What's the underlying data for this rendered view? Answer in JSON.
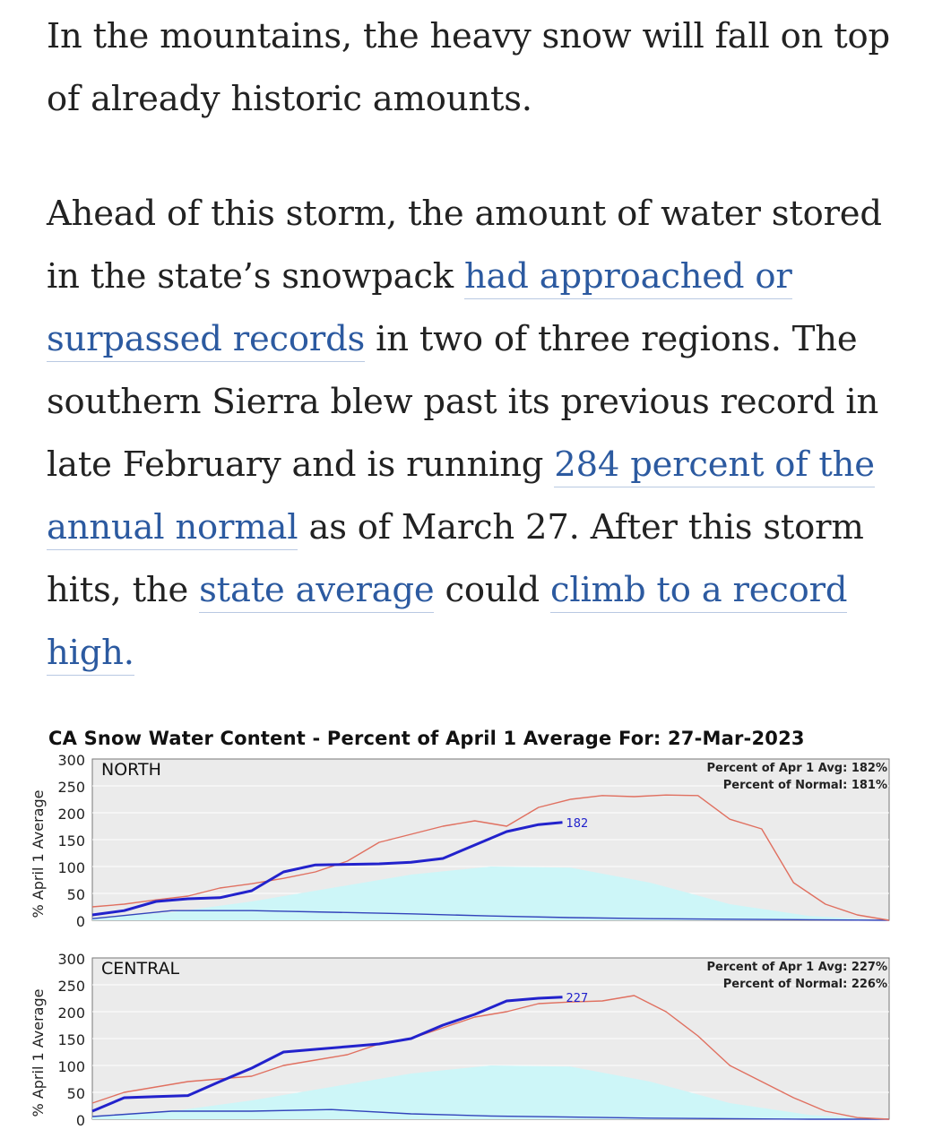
{
  "article": {
    "p1": "In the mountains, the heavy snow will fall on top of already historic amounts.",
    "p2_a": "Ahead of this storm, the amount of water stored in the state’s snowpack ",
    "p2_link1": "had approached or surpassed records",
    "p2_b": " in two of three regions. The southern Sierra blew past its previous record in late February and is running ",
    "p2_link2": "284 percent of the annual normal",
    "p2_c": " as of March 27. After this storm hits, the ",
    "p2_link3": "state average",
    "p2_d": " could ",
    "p2_link4": "climb to a record high."
  },
  "colors": {
    "link": "#2c5aa0",
    "current_year": "#2222cc",
    "record_max": "#e07060",
    "normal_fill": "#cdf6f8",
    "record_min": "#3344bb",
    "plot_bg": "#ebebeb"
  },
  "chart_data": {
    "title": "CA Snow Water Content - Percent of April 1 Average For: 27-Mar-2023",
    "type": "line",
    "ylabel": "% April 1 Average",
    "ylim": [
      0,
      300
    ],
    "yticks": [
      "300",
      "250",
      "200",
      "150",
      "100",
      "50",
      "0"
    ],
    "panels": [
      {
        "region": "NORTH",
        "stat1": "Percent of Apr 1 Avg: 182%",
        "stat2": "Percent of Normal: 181%",
        "end_label": "182",
        "current": {
          "x": [
            0,
            4,
            8,
            12,
            16,
            20,
            24,
            28,
            32,
            36,
            40,
            44,
            48,
            52,
            56,
            59
          ],
          "y": [
            10,
            18,
            35,
            40,
            42,
            55,
            90,
            103,
            104,
            105,
            108,
            115,
            140,
            165,
            178,
            182
          ]
        },
        "max": {
          "x": [
            0,
            4,
            8,
            12,
            16,
            20,
            24,
            28,
            32,
            36,
            40,
            44,
            48,
            52,
            56,
            60,
            64,
            68,
            72,
            76,
            80,
            84,
            88,
            92,
            96,
            100
          ],
          "y": [
            25,
            30,
            38,
            45,
            60,
            68,
            78,
            90,
            110,
            145,
            160,
            175,
            185,
            175,
            210,
            225,
            232,
            230,
            233,
            232,
            188,
            170,
            70,
            30,
            10,
            0
          ]
        },
        "normal": {
          "x": [
            0,
            10,
            20,
            30,
            40,
            50,
            60,
            70,
            80,
            90,
            100
          ],
          "y": [
            5,
            15,
            35,
            60,
            85,
            100,
            98,
            70,
            30,
            8,
            0
          ]
        },
        "min": {
          "x": [
            0,
            10,
            20,
            30,
            40,
            50,
            60,
            70,
            80,
            90,
            100
          ],
          "y": [
            3,
            18,
            18,
            15,
            12,
            8,
            5,
            3,
            2,
            1,
            0
          ]
        }
      },
      {
        "region": "CENTRAL",
        "stat1": "Percent of Apr 1 Avg: 227%",
        "stat2": "Percent of Normal: 226%",
        "end_label": "227",
        "current": {
          "x": [
            0,
            4,
            8,
            12,
            16,
            20,
            24,
            28,
            32,
            36,
            40,
            44,
            48,
            52,
            56,
            59
          ],
          "y": [
            15,
            40,
            42,
            44,
            70,
            95,
            125,
            130,
            135,
            140,
            150,
            175,
            195,
            220,
            225,
            227
          ]
        },
        "max": {
          "x": [
            0,
            4,
            8,
            12,
            16,
            20,
            24,
            28,
            32,
            36,
            40,
            44,
            48,
            52,
            56,
            60,
            64,
            68,
            72,
            76,
            80,
            84,
            88,
            92,
            96,
            100
          ],
          "y": [
            30,
            50,
            60,
            70,
            75,
            80,
            100,
            110,
            120,
            140,
            150,
            170,
            190,
            200,
            215,
            218,
            220,
            230,
            200,
            155,
            100,
            70,
            40,
            15,
            3,
            0
          ]
        },
        "normal": {
          "x": [
            0,
            10,
            20,
            30,
            40,
            50,
            60,
            70,
            80,
            90,
            100
          ],
          "y": [
            5,
            15,
            35,
            60,
            85,
            100,
            98,
            70,
            30,
            8,
            0
          ]
        },
        "min": {
          "x": [
            0,
            10,
            20,
            30,
            40,
            50,
            60,
            70,
            80,
            90,
            100
          ],
          "y": [
            5,
            15,
            15,
            18,
            10,
            6,
            4,
            2,
            1,
            0,
            0
          ]
        }
      }
    ]
  }
}
